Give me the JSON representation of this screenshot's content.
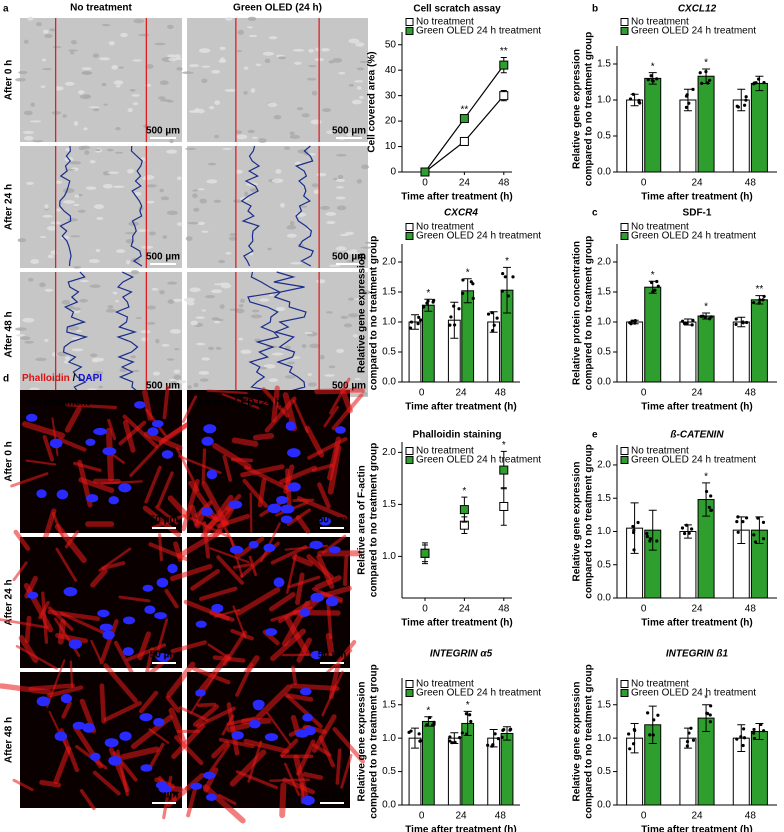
{
  "figure": {
    "a": {
      "panel": "a",
      "columns": [
        "No treatment",
        "Green OLED (24 h)"
      ],
      "rows": [
        "After 0 h",
        "After 24 h",
        "After 48 h"
      ],
      "scale_bar": "500 µm"
    },
    "d": {
      "panel": "d",
      "stain": [
        "Phalloidin",
        "/",
        "DAPI"
      ],
      "columns": [
        "No treatment",
        "Green OLED (24 h)"
      ],
      "rows": [
        "After 0 h",
        "After 24 h",
        "After 48 h"
      ],
      "scale_bar": "50 µm"
    }
  },
  "chart_data": [
    {
      "type": "line",
      "title": "Cell scratch assay",
      "title_italic": false,
      "ylabel": [
        "Cell covered area (%)"
      ],
      "xlabel": "Time after treatment (h)",
      "x": [
        0,
        24,
        48
      ],
      "xlim": [
        -14,
        53
      ],
      "xticks": [
        0,
        24,
        48
      ],
      "ylim": [
        0,
        55
      ],
      "yticks": [
        0,
        10,
        20,
        30,
        40,
        50
      ],
      "legend": "upper left",
      "series": [
        {
          "name": "No treatment",
          "color": "#ffffff",
          "values": [
            0,
            12,
            30
          ],
          "errors": [
            0,
            1.5,
            2
          ],
          "annotations": [
            null,
            null,
            null
          ]
        },
        {
          "name": "Green OLED 24 h treatment",
          "color": "#2e9e2e",
          "values": [
            0,
            21,
            42
          ],
          "errors": [
            0,
            1,
            3
          ],
          "annotations": [
            null,
            "**",
            "**"
          ]
        }
      ]
    },
    {
      "type": "bar",
      "panel": "b",
      "title": "CXCL12",
      "title_italic": true,
      "ylabel": [
        "Relative gene expression",
        "compared to no treatment group"
      ],
      "xlabel": "Time after treatment (h)",
      "categories": [
        "0",
        "24",
        "48"
      ],
      "ylim": [
        0,
        1.75
      ],
      "yticks": [
        {
          "value": 0,
          "label": "0.0"
        },
        0.5,
        {
          "value": 1,
          "label": "1.0"
        },
        1.5
      ],
      "legend": "upper left",
      "series": [
        {
          "name": "No treatment",
          "color": "#ffffff",
          "values": [
            1.0,
            1.0,
            1.0
          ],
          "errors": [
            0.08,
            0.15,
            0.15
          ],
          "annotations": [
            null,
            null,
            null
          ]
        },
        {
          "name": "Green OLED 24 h treatment",
          "color": "#2e9e2e",
          "values": [
            1.3,
            1.33,
            1.23
          ],
          "errors": [
            0.08,
            0.1,
            0.1
          ],
          "annotations": [
            "*",
            "*",
            null
          ]
        }
      ]
    },
    {
      "type": "bar",
      "title": "CXCR4",
      "title_italic": true,
      "ylabel": [
        "Relative gene expression",
        "compared to no treatment group"
      ],
      "xlabel": "Time after treatment (h)",
      "categories": [
        "0",
        "24",
        "48"
      ],
      "ylim": [
        0,
        2.3
      ],
      "yticks": [
        {
          "value": 0,
          "label": "0.0"
        },
        0.5,
        {
          "value": 1,
          "label": "1.0"
        },
        1.5,
        {
          "value": 2,
          "label": "2.0"
        }
      ],
      "legend": "upper left",
      "series": [
        {
          "name": "No treatment",
          "color": "#ffffff",
          "values": [
            1.0,
            1.03,
            1.0
          ],
          "errors": [
            0.12,
            0.3,
            0.17
          ],
          "annotations": [
            null,
            null,
            null
          ]
        },
        {
          "name": "Green OLED 24 h treatment",
          "color": "#2e9e2e",
          "values": [
            1.28,
            1.52,
            1.53
          ],
          "errors": [
            0.1,
            0.2,
            0.38
          ],
          "annotations": [
            "*",
            "*",
            "*"
          ]
        }
      ]
    },
    {
      "type": "bar",
      "panel": "c",
      "title": "SDF-1",
      "title_italic": false,
      "ylabel": [
        "Relative protein concentration",
        "compared to no treatment group"
      ],
      "xlabel": "Time after treatment (h)",
      "categories": [
        "0",
        "24",
        "48"
      ],
      "ylim": [
        0,
        2.3
      ],
      "yticks": [
        {
          "value": 0,
          "label": "0.0"
        },
        0.5,
        {
          "value": 1,
          "label": "1.0"
        },
        1.5,
        {
          "value": 2,
          "label": "2.0"
        }
      ],
      "legend": "upper left",
      "series": [
        {
          "name": "No treatment",
          "color": "#ffffff",
          "values": [
            1.0,
            1.0,
            1.0
          ],
          "errors": [
            0.03,
            0.05,
            0.08
          ],
          "annotations": [
            null,
            null,
            null
          ]
        },
        {
          "name": "Green OLED 24 h treatment",
          "color": "#2e9e2e",
          "values": [
            1.58,
            1.1,
            1.37
          ],
          "errors": [
            0.1,
            0.05,
            0.07
          ],
          "annotations": [
            "*",
            "*",
            "**"
          ]
        }
      ]
    },
    {
      "type": "scatter",
      "title": "Phalloidin staining",
      "title_italic": false,
      "ylabel": [
        "Relative area of F-actin",
        "compared to no treatment group"
      ],
      "xlabel": "Time after treatment (h)",
      "x": [
        0,
        24,
        48
      ],
      "xlim": [
        -14,
        53
      ],
      "xticks": [
        0,
        24,
        48
      ],
      "ylim": [
        0.6,
        2.1
      ],
      "yticks": [
        {
          "value": 1,
          "label": "1.0"
        },
        1.5,
        {
          "value": 2,
          "label": "2.0"
        }
      ],
      "legend": "upper left",
      "series": [
        {
          "name": "No treatment",
          "color": "#ffffff",
          "values": [
            1.03,
            1.3,
            1.48
          ],
          "errors": [
            0.08,
            0.08,
            0.18
          ],
          "annotations": [
            null,
            null,
            null
          ]
        },
        {
          "name": "Green OLED 24 h treatment",
          "color": "#2e9e2e",
          "values": [
            1.03,
            1.45,
            1.83
          ],
          "errors": [
            0.1,
            0.12,
            0.18
          ],
          "annotations": [
            null,
            "*",
            "*"
          ]
        }
      ]
    },
    {
      "type": "bar",
      "panel": "e",
      "title": "ß-CATENIN",
      "title_italic": true,
      "ylabel": [
        "Relative gene expression",
        "compared to no treatment group"
      ],
      "xlabel": "Time after treatment (h)",
      "categories": [
        "0",
        "24",
        "48"
      ],
      "ylim": [
        0,
        2.3
      ],
      "yticks": [
        {
          "value": 0,
          "label": "0.0"
        },
        0.5,
        {
          "value": 1,
          "label": "1.0"
        },
        1.5,
        {
          "value": 2,
          "label": "2.0"
        }
      ],
      "legend": "upper left",
      "series": [
        {
          "name": "No treatment",
          "color": "#ffffff",
          "values": [
            1.05,
            1.0,
            1.02
          ],
          "errors": [
            0.38,
            0.1,
            0.2
          ],
          "annotations": [
            null,
            null,
            null
          ]
        },
        {
          "name": "Green OLED 24 h treatment",
          "color": "#2e9e2e",
          "values": [
            1.02,
            1.48,
            1.02
          ],
          "errors": [
            0.3,
            0.25,
            0.2
          ],
          "annotations": [
            null,
            "*",
            null
          ]
        }
      ]
    },
    {
      "type": "bar",
      "title": "INTEGRIN α5",
      "title_italic": true,
      "ylabel": [
        "Relative gene expression",
        "compared to no treatment group"
      ],
      "xlabel": "Time after treatment (h)",
      "categories": [
        "0",
        "24",
        "48"
      ],
      "ylim": [
        0,
        1.9
      ],
      "yticks": [
        {
          "value": 0,
          "label": "0.0"
        },
        0.5,
        {
          "value": 1,
          "label": "1.0"
        },
        1.5
      ],
      "legend": "upper left",
      "series": [
        {
          "name": "No treatment",
          "color": "#ffffff",
          "values": [
            1.0,
            1.0,
            1.0
          ],
          "errors": [
            0.15,
            0.08,
            0.13
          ],
          "annotations": [
            null,
            null,
            null
          ]
        },
        {
          "name": "Green OLED 24 h treatment",
          "color": "#2e9e2e",
          "values": [
            1.25,
            1.22,
            1.07
          ],
          "errors": [
            0.07,
            0.18,
            0.1
          ],
          "annotations": [
            "*",
            "*",
            null
          ]
        }
      ]
    },
    {
      "type": "bar",
      "title": "INTEGRIN ß1",
      "title_italic": true,
      "ylabel": [
        "Relative gene expression",
        "compared to no treatment group"
      ],
      "xlabel": "Time after treatment (h)",
      "categories": [
        "0",
        "24",
        "48"
      ],
      "ylim": [
        0,
        1.9
      ],
      "yticks": [
        {
          "value": 0,
          "label": "0.0"
        },
        0.5,
        {
          "value": 1,
          "label": "1.0"
        },
        1.5
      ],
      "legend": "upper left",
      "series": [
        {
          "name": "No treatment",
          "color": "#ffffff",
          "values": [
            1.0,
            1.0,
            1.0
          ],
          "errors": [
            0.22,
            0.15,
            0.2
          ],
          "annotations": [
            null,
            null,
            null
          ]
        },
        {
          "name": "Green OLED 24 h treatment",
          "color": "#2e9e2e",
          "values": [
            1.2,
            1.3,
            1.1
          ],
          "errors": [
            0.28,
            0.2,
            0.12
          ],
          "annotations": [
            null,
            "*",
            null
          ]
        }
      ]
    }
  ]
}
